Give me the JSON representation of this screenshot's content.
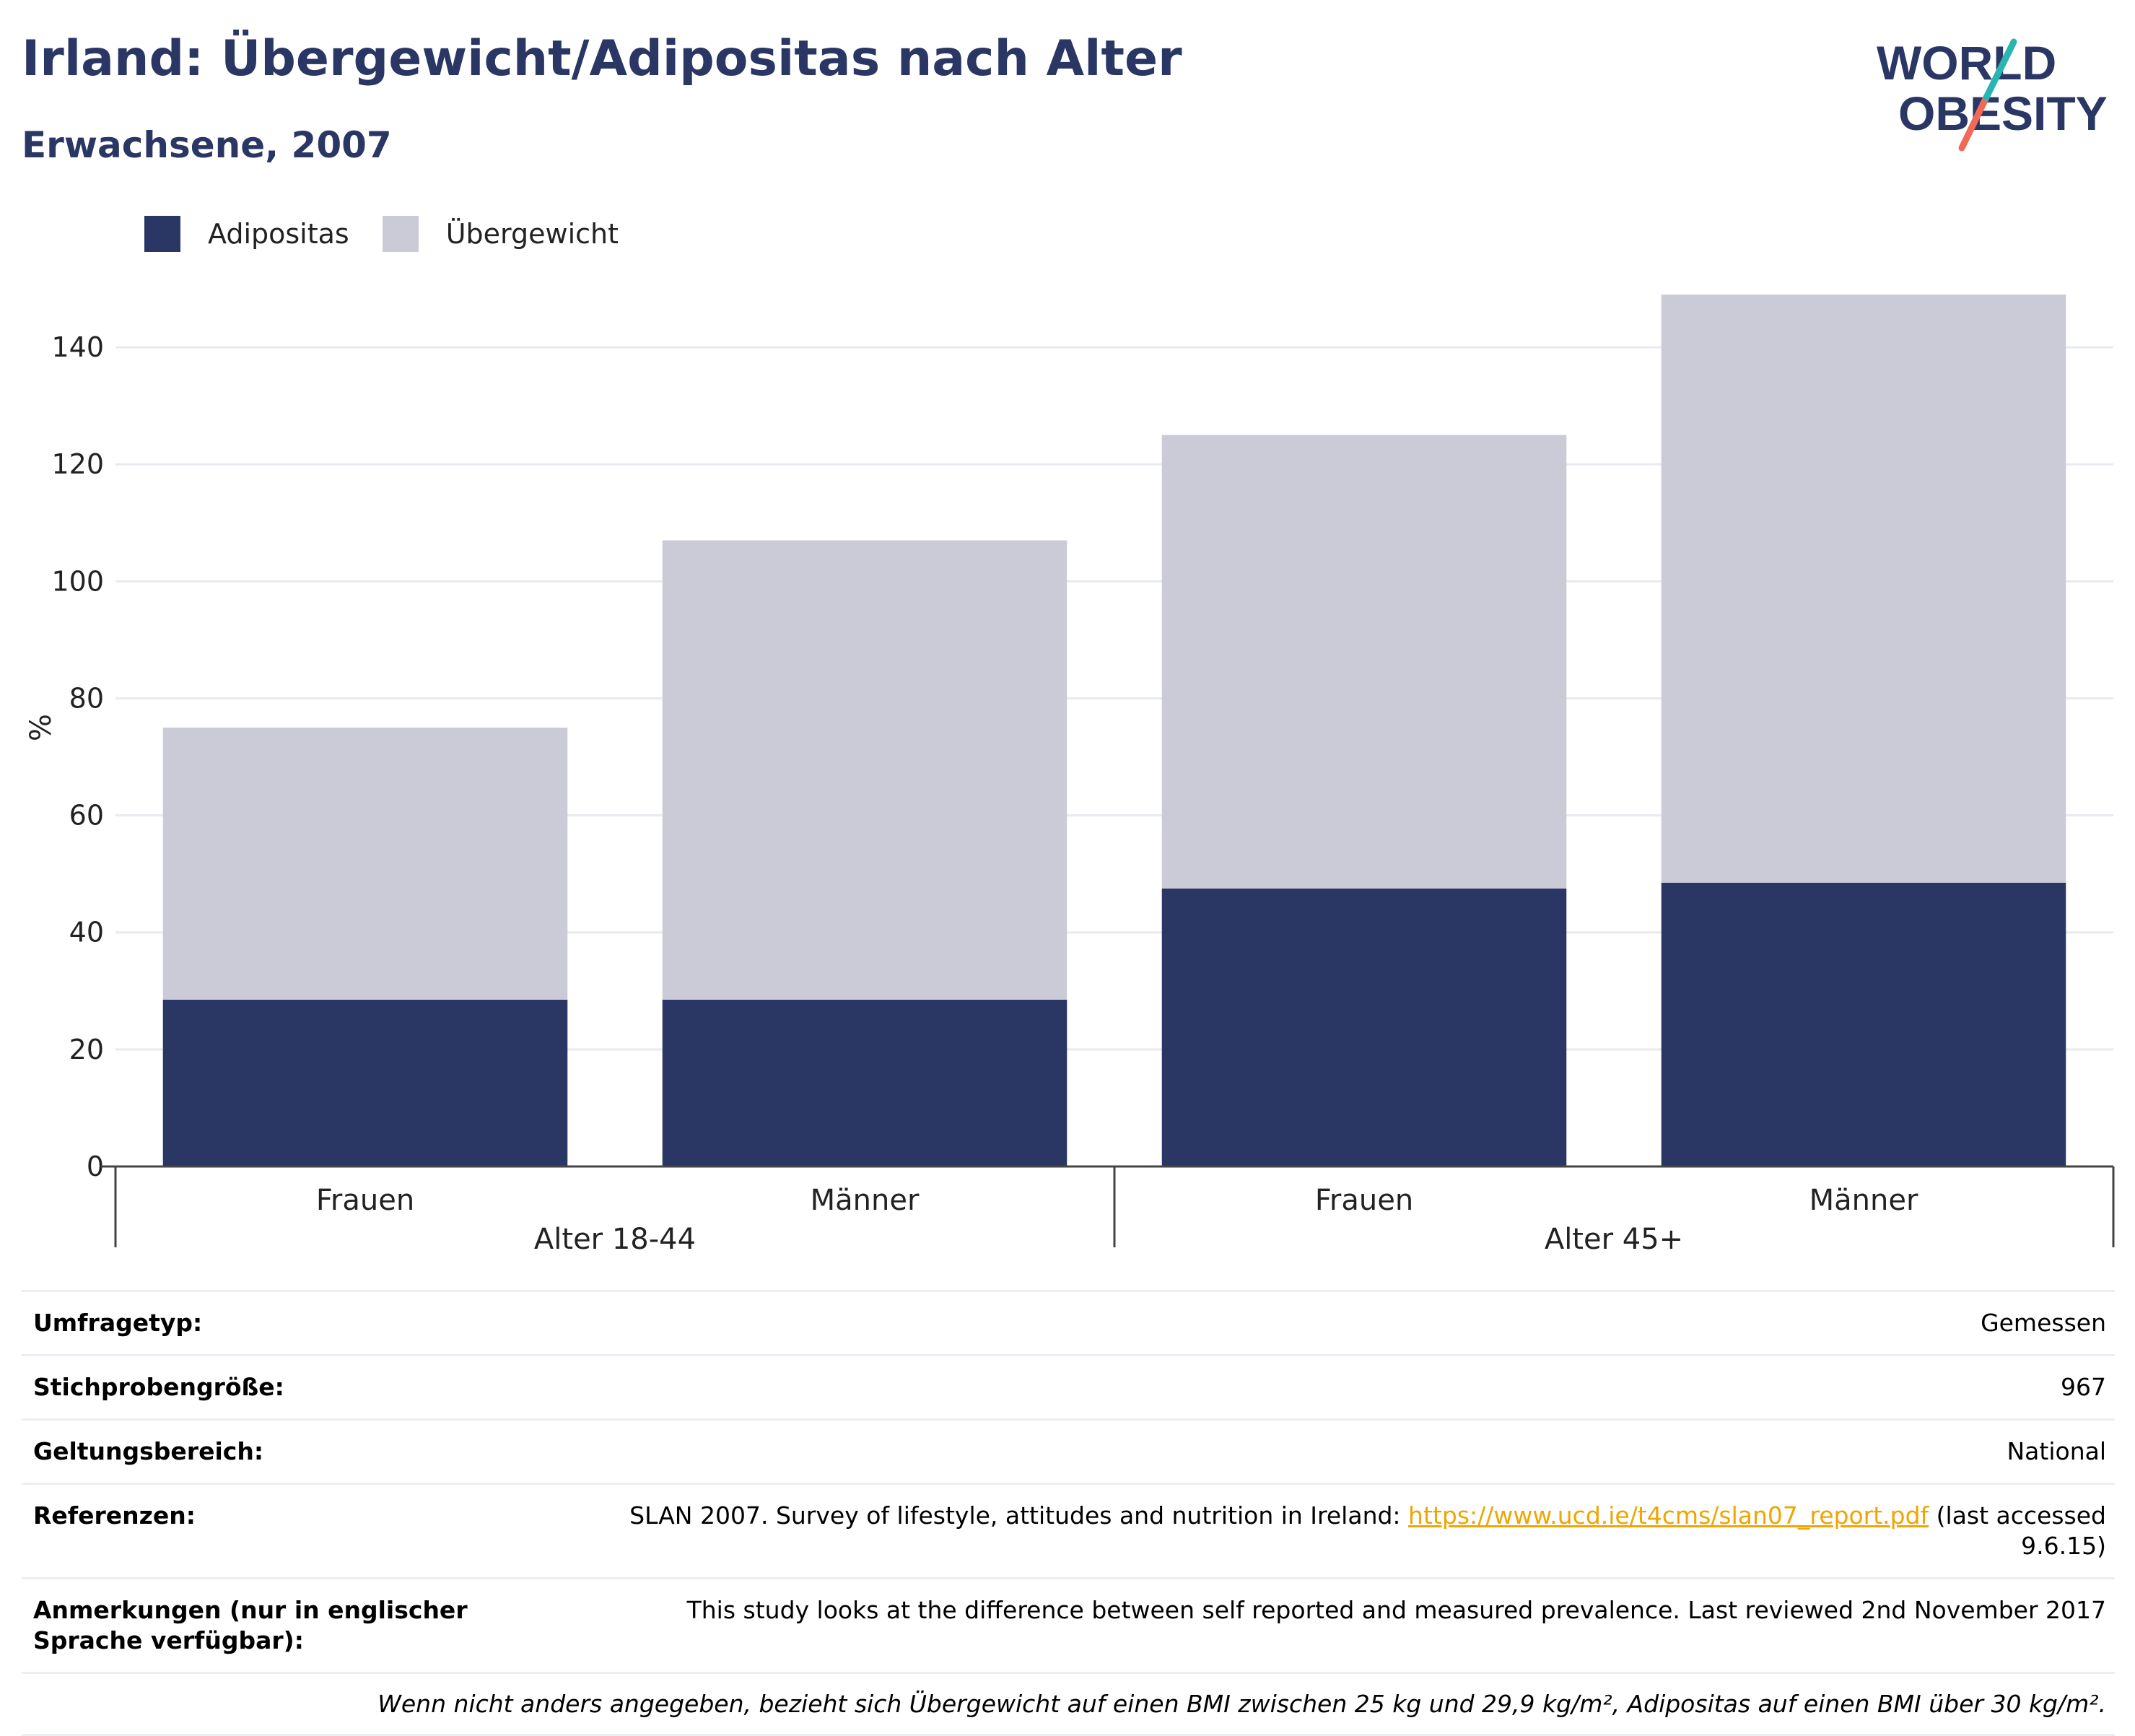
{
  "header": {
    "title": "Irland: Übergewicht/Adipositas nach Alter",
    "subtitle": "Erwachsene, 2007",
    "logo_line1": "WORLD",
    "logo_line2": "OBESITY"
  },
  "colors": {
    "title": "#2a3663",
    "adipositas": "#2a3663",
    "uebergewicht": "#cacbd7",
    "grid": "#e8eaf0",
    "link": "#f0a500",
    "logo_teal": "#2bb5b0",
    "logo_coral": "#f06a56"
  },
  "chart_data": {
    "type": "bar",
    "stacked": true,
    "ylabel": "%",
    "ylim": [
      0,
      150
    ],
    "yticks": [
      "0",
      "20",
      "40",
      "60",
      "80",
      "100",
      "120",
      "140"
    ],
    "ytick_values": [
      0,
      20,
      40,
      60,
      80,
      100,
      120,
      140
    ],
    "categories": [
      "Frauen",
      "Männer",
      "Frauen",
      "Männer"
    ],
    "groups": [
      {
        "label": "Alter 18-44",
        "span": 2
      },
      {
        "label": "Alter 45+",
        "span": 2
      }
    ],
    "series": [
      {
        "name": "Adipositas",
        "values": [
          28.5,
          28.5,
          47.5,
          48.5
        ]
      },
      {
        "name": "Übergewicht",
        "values": [
          46.5,
          78.5,
          77.5,
          100.5
        ]
      }
    ],
    "legend": "top-left",
    "grid": true
  },
  "info": {
    "rows": [
      {
        "label": "Umfragetyp:",
        "value": "Gemessen"
      },
      {
        "label": "Stichprobengröße:",
        "value": "967"
      },
      {
        "label": "Geltungsbereich:",
        "value": "National"
      }
    ],
    "references": {
      "label": "Referenzen:",
      "text_before": "SLAN 2007. Survey of lifestyle, attitudes and nutrition in Ireland: ",
      "link": "https://www.ucd.ie/t4cms/slan07_report.pdf",
      "text_after": " (last accessed 9.6.15)"
    },
    "notes": {
      "label": "Anmerkungen (nur in englischer Sprache verfügbar):",
      "value": "This study looks at the difference between self reported and measured prevalence. Last reviewed 2nd November 2017"
    },
    "footnote": "Wenn nicht anders angegeben, bezieht sich Übergewicht auf einen BMI zwischen 25 kg und 29,9 kg/m², Adipositas auf einen BMI über 30 kg/m²."
  }
}
